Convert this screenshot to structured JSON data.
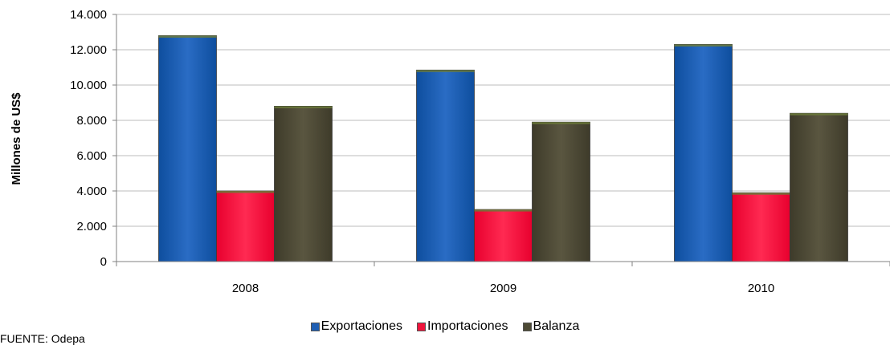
{
  "chart_data": {
    "type": "bar",
    "categories": [
      "2008",
      "2009",
      "2010"
    ],
    "series": [
      {
        "name": "Exportaciones",
        "values": [
          12800,
          10850,
          12300
        ],
        "color": "#1f5fb4"
      },
      {
        "name": "Importaciones",
        "values": [
          4000,
          2950,
          3900
        ],
        "color": "#f0143c"
      },
      {
        "name": "Balanza",
        "values": [
          8800,
          7900,
          8400
        ],
        "color": "#4d4a35"
      }
    ],
    "ylabel": "Millones de US$",
    "ylim": [
      0,
      14000
    ],
    "yticks": [
      "0",
      "2.000",
      "4.000",
      "6.000",
      "8.000",
      "10.000",
      "12.000",
      "14.000"
    ],
    "yticks_values": [
      0,
      2000,
      4000,
      6000,
      8000,
      10000,
      12000,
      14000
    ],
    "grid": true,
    "legend_position": "bottom"
  },
  "source_text": "FUENTE: Odepa"
}
